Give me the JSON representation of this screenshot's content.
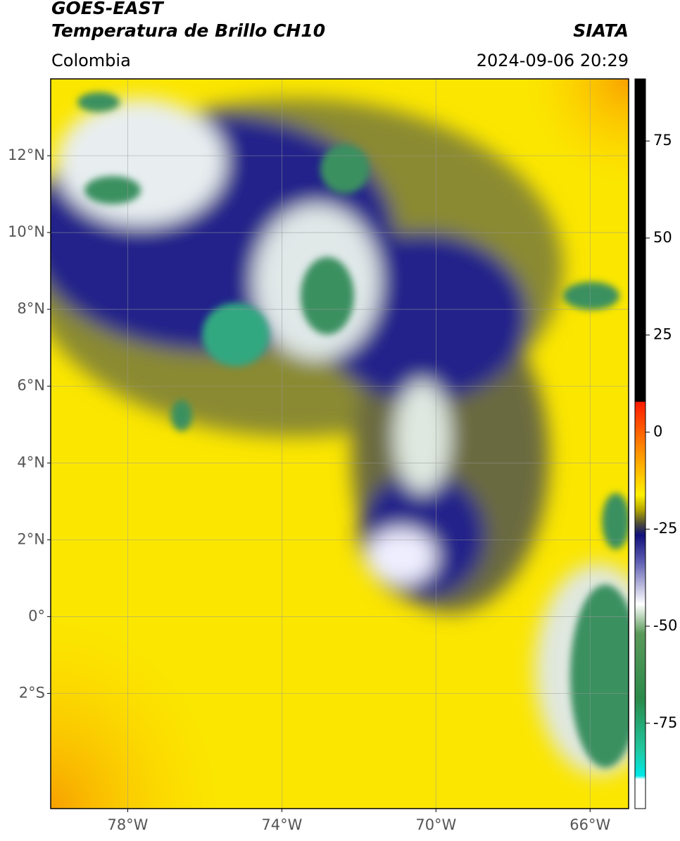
{
  "header": {
    "title": "GOES-EAST",
    "subtitle": "Temperatura de Brillo CH10",
    "source": "SIATA",
    "region": "Colombia",
    "datetime": "2024-09-06 20:29"
  },
  "map": {
    "xlim": [
      -80,
      -65
    ],
    "ylim": [
      -5,
      14
    ],
    "xticks": [
      {
        "value": -78,
        "label": "78°W"
      },
      {
        "value": -74,
        "label": "74°W"
      },
      {
        "value": -70,
        "label": "70°W"
      },
      {
        "value": -66,
        "label": "66°W"
      }
    ],
    "yticks": [
      {
        "value": 12,
        "label": "12°N"
      },
      {
        "value": 10,
        "label": "10°N"
      },
      {
        "value": 8,
        "label": "8°N"
      },
      {
        "value": 6,
        "label": "6°N"
      },
      {
        "value": 4,
        "label": "4°N"
      },
      {
        "value": 2,
        "label": "2°N"
      },
      {
        "value": 0,
        "label": "0°"
      },
      {
        "value": -2,
        "label": "2°S"
      }
    ],
    "grid": true
  },
  "colorbar": {
    "lim": [
      -97,
      91
    ],
    "ticks": [
      75,
      50,
      25,
      0,
      -25,
      -50,
      -75
    ]
  }
}
